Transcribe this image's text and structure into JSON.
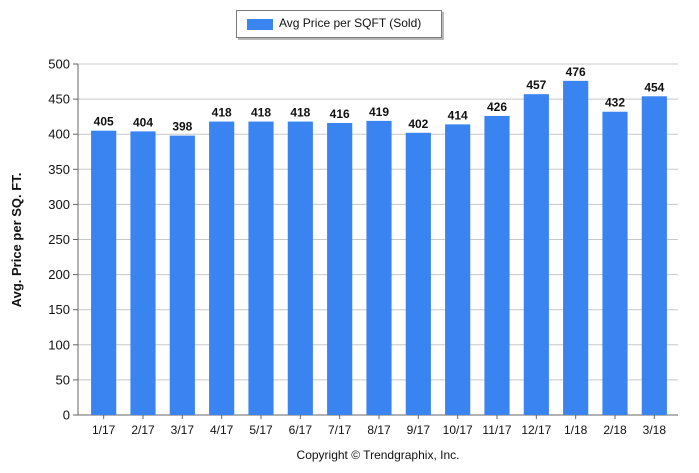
{
  "chart_data": {
    "type": "bar",
    "categories": [
      "1/17",
      "2/17",
      "3/17",
      "4/17",
      "5/17",
      "6/17",
      "7/17",
      "8/17",
      "9/17",
      "10/17",
      "11/17",
      "12/17",
      "1/18",
      "2/18",
      "3/18"
    ],
    "series": [
      {
        "name": "Avg Price per SQFT (Sold)",
        "values": [
          405,
          404,
          398,
          418,
          418,
          418,
          416,
          419,
          402,
          414,
          426,
          457,
          476,
          432,
          454
        ],
        "color": "#3a84f2"
      }
    ],
    "ylabel": "Avg. Price per SQ. FT.",
    "ylim": [
      0,
      500
    ],
    "yticks": [
      0,
      50,
      100,
      150,
      200,
      250,
      300,
      350,
      400,
      450,
      500
    ],
    "grid": true,
    "legend_position": "top-center",
    "data_labels": true
  },
  "footer": {
    "copyright": "Copyright © Trendgraphix, Inc."
  }
}
